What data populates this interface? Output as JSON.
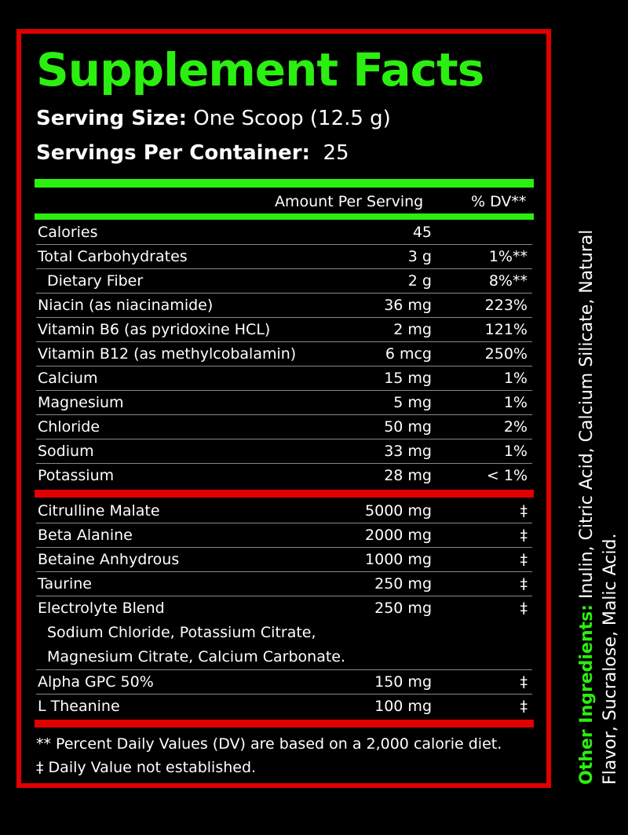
{
  "title": "Supplement Facts",
  "serving_size": {
    "label": "Serving Size:",
    "value": "One Scoop (12.5 g)"
  },
  "servings_per_container": {
    "label": "Servings Per Container:",
    "value": "25"
  },
  "columns": {
    "amount": "Amount Per Serving",
    "dv": "% DV**"
  },
  "nutrients": [
    {
      "name": "Calories",
      "amount": "45",
      "dv": ""
    },
    {
      "name": "Total Carbohydrates",
      "amount": "3 g",
      "dv": "1%**"
    },
    {
      "name": "Dietary Fiber",
      "amount": "2 g",
      "dv": "8%**"
    },
    {
      "name": "Niacin (as niacinamide)",
      "amount": "36 mg",
      "dv": "223%"
    },
    {
      "name": "Vitamin B6 (as pyridoxine HCL)",
      "amount": "2 mg",
      "dv": "121%"
    },
    {
      "name": "Vitamin B12 (as methylcobalamin)",
      "amount": "6 mcg",
      "dv": "250%"
    },
    {
      "name": "Calcium",
      "amount": "15 mg",
      "dv": "1%"
    },
    {
      "name": "Magnesium",
      "amount": "5 mg",
      "dv": "1%"
    },
    {
      "name": "Chloride",
      "amount": "50 mg",
      "dv": "2%"
    },
    {
      "name": "Sodium",
      "amount": "33 mg",
      "dv": "1%"
    },
    {
      "name": "Potassium",
      "amount": "28 mg",
      "dv": "< 1%"
    }
  ],
  "ingredients": [
    {
      "name": "Citrulline Malate",
      "amount": "5000 mg",
      "dv": "‡"
    },
    {
      "name": "Beta Alanine",
      "amount": "2000 mg",
      "dv": "‡"
    },
    {
      "name": "Betaine Anhydrous",
      "amount": "1000 mg",
      "dv": "‡"
    },
    {
      "name": "Taurine",
      "amount": "250 mg",
      "dv": "‡"
    },
    {
      "name": "Electrolyte Blend",
      "amount": "250 mg",
      "dv": "‡"
    },
    {
      "name": "Alpha GPC 50%",
      "amount": "150 mg",
      "dv": "‡"
    },
    {
      "name": "L Theanine",
      "amount": "100 mg",
      "dv": "‡"
    }
  ],
  "electrolyte_detail": [
    "Sodium Chloride, Potassium Citrate,",
    "Magnesium Citrate, Calcium Carbonate."
  ],
  "footnotes": [
    "** Percent Daily Values (DV) are based on a 2,000 calorie diet.",
    "‡ Daily Value not established."
  ],
  "other_ingredients": {
    "label": "Other Ingredients:",
    "text": "Inulin, Citric Acid, Calcium Silicate, Natural Flavor, Sucralose, Malic Acid."
  }
}
